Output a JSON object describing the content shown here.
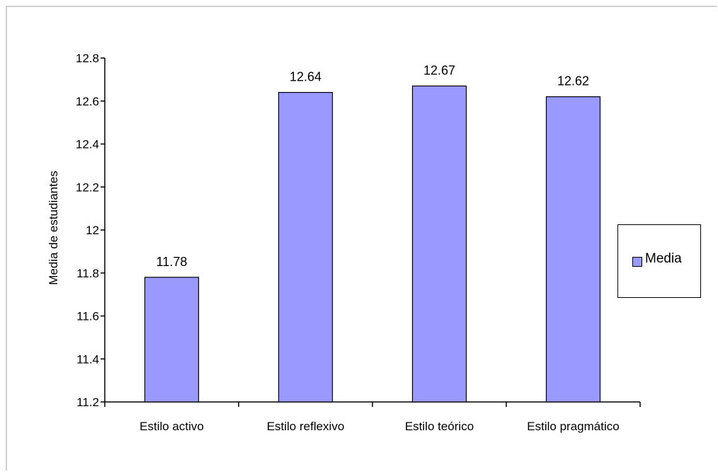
{
  "chart_data": {
    "type": "bar",
    "categories": [
      "Estilo activo",
      "Estilo reflexivo",
      "Estilo teórico",
      "Estilo pragmático"
    ],
    "series": [
      {
        "name": "Media",
        "values": [
          11.78,
          12.64,
          12.67,
          12.62
        ],
        "color": "#9999ff"
      }
    ],
    "data_labels": [
      "11.78",
      "12.64",
      "12.67",
      "12.62"
    ],
    "ylabel": "Media de estudiantes",
    "xlabel": "",
    "ylim": [
      11.2,
      12.8
    ],
    "yticks": [
      11.2,
      11.4,
      11.6,
      11.8,
      12,
      12.2,
      12.4,
      12.6,
      12.8
    ],
    "ytick_labels": [
      "11.2",
      "11.4",
      "11.6",
      "11.8",
      "12",
      "12.2",
      "12.4",
      "12.6",
      "12.8"
    ],
    "grid": false,
    "legend_position": "right"
  }
}
